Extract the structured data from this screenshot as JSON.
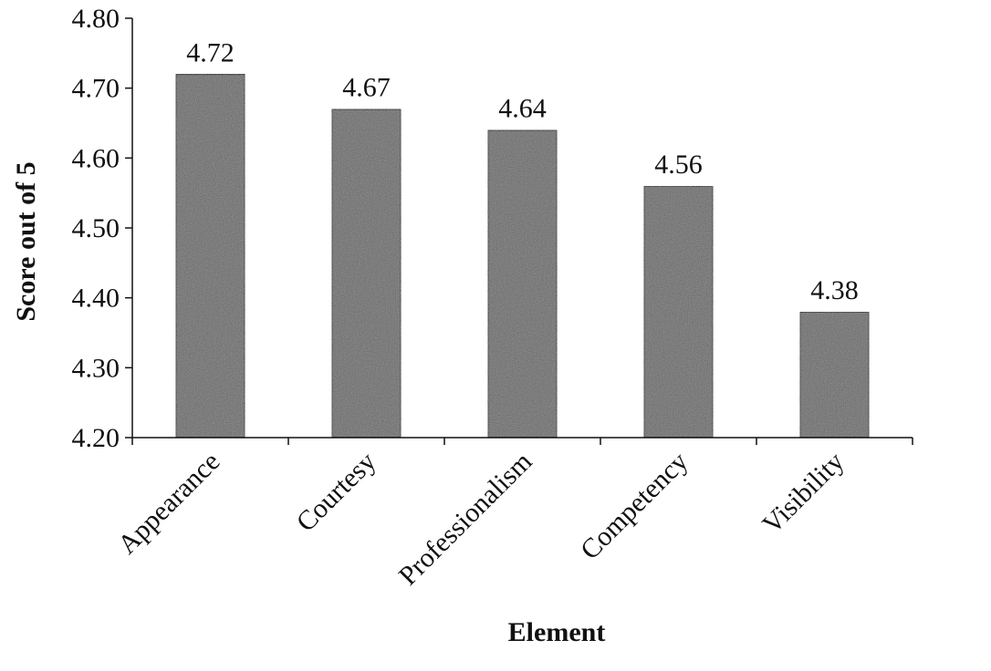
{
  "chart_data": {
    "type": "bar",
    "title": "",
    "xlabel": "Element",
    "ylabel": "Score out of 5",
    "categories": [
      "Appearance",
      "Courtesy",
      "Professionalism",
      "Competency",
      "Visibility"
    ],
    "values": [
      4.72,
      4.67,
      4.64,
      4.56,
      4.38
    ],
    "data_labels": [
      "4.72",
      "4.67",
      "4.64",
      "4.56",
      "4.38"
    ],
    "ylim": [
      4.2,
      4.8
    ],
    "y_ticks": [
      "4.20",
      "4.30",
      "4.40",
      "4.50",
      "4.60",
      "4.70",
      "4.80"
    ],
    "grid": false,
    "legend": "none",
    "bar_color": "#6b6b6b",
    "bar_edge_color": "#1a1a1a"
  }
}
